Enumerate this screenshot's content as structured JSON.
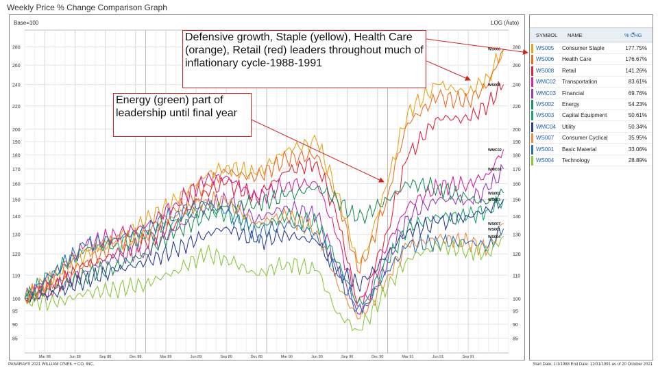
{
  "page": {
    "title": "Weekly Price % Change Comparison Graph"
  },
  "chart_header": {
    "base_label": "Base=100",
    "scale_label": "LOG (Auto)"
  },
  "table": {
    "headers": {
      "symbol": "SYMBOL",
      "name": "NAME",
      "chg": "% CHG"
    },
    "sort_indicator": "▼",
    "rows": [
      {
        "symbol": "WS005",
        "name": "Consumer Staple",
        "chg": "177.75%",
        "color": "#e8a317"
      },
      {
        "symbol": "WS006",
        "name": "Health Care",
        "chg": "176.67%",
        "color": "#ef6d22"
      },
      {
        "symbol": "WS008",
        "name": "Retail",
        "chg": "141.26%",
        "color": "#e0233a"
      },
      {
        "symbol": "WMC02",
        "name": "Transportation",
        "chg": "83.61%",
        "color": "#d6249a"
      },
      {
        "symbol": "WMC03",
        "name": "Financial",
        "chg": "69.76%",
        "color": "#9a3bb5"
      },
      {
        "symbol": "WS002",
        "name": "Energy",
        "chg": "54.23%",
        "color": "#1f8f5a"
      },
      {
        "symbol": "WS003",
        "name": "Capital Equipment",
        "chg": "50.61%",
        "color": "#17a36b"
      },
      {
        "symbol": "WMC04",
        "name": "Utility",
        "chg": "50.34%",
        "color": "#2c3f8f"
      },
      {
        "symbol": "WS007",
        "name": "Consumer Cyclical",
        "chg": "35.95%",
        "color": "#f08a3c"
      },
      {
        "symbol": "WS001",
        "name": "Basic Material",
        "chg": "33.06%",
        "color": "#2a6fb8"
      },
      {
        "symbol": "WS004",
        "name": "Technology",
        "chg": "28.89%",
        "color": "#8dc63f"
      }
    ]
  },
  "annotations": {
    "note1": "Defensive growth, Staple (yellow), Health Care (orange), Retail (red) leaders throughout much of inflationary cycle-1988-1991",
    "note2": "Energy (green) part of leadership until final year"
  },
  "footer": {
    "logo": "PANARAY® 2021 WILLIAM O'NEIL + CO. INC.",
    "dates": "Start Date: 1/1/1988  End Date: 12/31/1991 as of  20 October 2021"
  },
  "chart_data": {
    "type": "line",
    "title": "Weekly Price % Change Comparison Graph",
    "y_scale": "log",
    "ylim": [
      80,
      300
    ],
    "y_ticks": [
      85,
      90,
      95,
      100,
      110,
      120,
      130,
      140,
      150,
      160,
      170,
      180,
      190,
      200,
      220,
      240,
      260,
      280
    ],
    "x_ticks": [
      "Mar 88",
      "Jun 88",
      "Sep 88",
      "Dec 88",
      "Mar 89",
      "Jun 89",
      "Sep 89",
      "Dec 89",
      "Mar 90",
      "Jun 90",
      "Sep 90",
      "Dec 90",
      "Mar 91",
      "Jun 91",
      "Sep 91"
    ],
    "x_tick_months": [
      2,
      5,
      8,
      11,
      14,
      17,
      20,
      23,
      26,
      29,
      32,
      35,
      38,
      41,
      44
    ],
    "grid": true,
    "x_domain_months": [
      0,
      48
    ],
    "series": [
      {
        "name": "WS005",
        "color": "#e8a317",
        "x": [
          0,
          3,
          6,
          9,
          12,
          15,
          18,
          20,
          23,
          26,
          29,
          31,
          33,
          34,
          36,
          38,
          41,
          44,
          46,
          47.5
        ],
        "y": [
          100,
          108,
          120,
          128,
          137,
          150,
          165,
          172,
          166,
          184,
          190,
          154,
          116,
          122,
          160,
          215,
          240,
          232,
          248,
          278
        ]
      },
      {
        "name": "WS006",
        "color": "#ef6d22",
        "x": [
          0,
          3,
          6,
          9,
          12,
          15,
          18,
          20,
          23,
          26,
          29,
          31,
          33,
          34,
          36,
          38,
          41,
          44,
          46,
          47.5
        ],
        "y": [
          100,
          106,
          116,
          124,
          132,
          143,
          160,
          168,
          164,
          177,
          180,
          150,
          112,
          118,
          152,
          205,
          228,
          224,
          240,
          277
        ]
      },
      {
        "name": "WS008",
        "color": "#e0233a",
        "x": [
          0,
          3,
          6,
          9,
          12,
          15,
          18,
          20,
          23,
          26,
          29,
          31,
          33,
          34,
          36,
          38,
          41,
          44,
          46,
          47.5
        ],
        "y": [
          100,
          105,
          114,
          120,
          126,
          136,
          155,
          160,
          152,
          168,
          175,
          138,
          98,
          104,
          132,
          178,
          210,
          208,
          222,
          240
        ]
      },
      {
        "name": "WMC02",
        "color": "#d6249a",
        "x": [
          0,
          3,
          6,
          9,
          12,
          15,
          18,
          20,
          23,
          26,
          29,
          31,
          33,
          34,
          36,
          38,
          41,
          44,
          46,
          47.5
        ],
        "y": [
          100,
          110,
          124,
          130,
          134,
          148,
          162,
          165,
          150,
          160,
          160,
          128,
          97,
          100,
          124,
          146,
          158,
          160,
          166,
          184
        ]
      },
      {
        "name": "WMC03",
        "color": "#9a3bb5",
        "x": [
          0,
          3,
          6,
          9,
          12,
          15,
          18,
          20,
          23,
          26,
          29,
          31,
          33,
          34,
          36,
          38,
          41,
          44,
          46,
          47.5
        ],
        "y": [
          100,
          104,
          112,
          118,
          122,
          132,
          146,
          150,
          138,
          146,
          140,
          114,
          94,
          97,
          116,
          140,
          150,
          150,
          156,
          170
        ]
      },
      {
        "name": "WS002",
        "color": "#1f8f5a",
        "x": [
          0,
          3,
          6,
          9,
          12,
          15,
          18,
          20,
          23,
          26,
          29,
          31,
          33,
          34,
          36,
          38,
          41,
          44,
          46,
          47.5
        ],
        "y": [
          100,
          104,
          110,
          114,
          120,
          132,
          140,
          146,
          148,
          152,
          158,
          150,
          138,
          142,
          150,
          160,
          158,
          150,
          148,
          154
        ]
      },
      {
        "name": "WS003",
        "color": "#17a36b",
        "x": [
          0,
          3,
          6,
          9,
          12,
          15,
          18,
          20,
          23,
          26,
          29,
          31,
          33,
          34,
          36,
          38,
          41,
          44,
          46,
          47.5
        ],
        "y": [
          100,
          112,
          122,
          125,
          128,
          138,
          145,
          142,
          134,
          140,
          136,
          116,
          98,
          100,
          116,
          134,
          140,
          140,
          144,
          150
        ]
      },
      {
        "name": "WMC04",
        "color": "#2c3f8f",
        "x": [
          0,
          3,
          6,
          9,
          12,
          15,
          18,
          20,
          23,
          26,
          29,
          31,
          33,
          34,
          36,
          38,
          41,
          44,
          46,
          47.5
        ],
        "y": [
          100,
          102,
          108,
          112,
          116,
          122,
          130,
          134,
          126,
          130,
          126,
          112,
          106,
          108,
          120,
          132,
          136,
          140,
          144,
          150
        ]
      },
      {
        "name": "WS007",
        "color": "#f08a3c",
        "x": [
          0,
          3,
          6,
          9,
          12,
          15,
          18,
          20,
          23,
          26,
          29,
          31,
          33,
          34,
          36,
          38,
          41,
          44,
          46,
          47.5
        ],
        "y": [
          100,
          110,
          122,
          126,
          130,
          140,
          150,
          148,
          136,
          140,
          132,
          106,
          92,
          95,
          110,
          124,
          128,
          126,
          122,
          136
        ]
      },
      {
        "name": "WS001",
        "color": "#2a6fb8",
        "x": [
          0,
          3,
          6,
          9,
          12,
          15,
          18,
          20,
          23,
          26,
          29,
          31,
          33,
          34,
          36,
          38,
          41,
          44,
          46,
          47.5
        ],
        "y": [
          100,
          112,
          124,
          128,
          132,
          142,
          148,
          142,
          130,
          136,
          130,
          110,
          96,
          98,
          112,
          124,
          126,
          126,
          124,
          133
        ]
      },
      {
        "name": "WS004",
        "color": "#8dc63f",
        "x": [
          0,
          3,
          6,
          9,
          12,
          15,
          18,
          20,
          23,
          26,
          29,
          31,
          33,
          34,
          36,
          38,
          41,
          44,
          46,
          47.5
        ],
        "y": [
          100,
          98,
          102,
          104,
          106,
          112,
          120,
          118,
          110,
          116,
          112,
          94,
          88,
          92,
          104,
          118,
          124,
          122,
          120,
          129
        ]
      }
    ],
    "end_labels": [
      {
        "text": "WS006",
        "y": 278
      },
      {
        "text": "WS008",
        "y": 240
      },
      {
        "text": "WMC02",
        "y": 184
      },
      {
        "text": "WMC03",
        "y": 170
      },
      {
        "text": "WS002",
        "y": 154
      },
      {
        "text": "WS003",
        "y": 150
      },
      {
        "text": "WS007",
        "y": 136
      },
      {
        "text": "WS001",
        "y": 133
      },
      {
        "text": "WS004",
        "y": 129
      }
    ]
  }
}
